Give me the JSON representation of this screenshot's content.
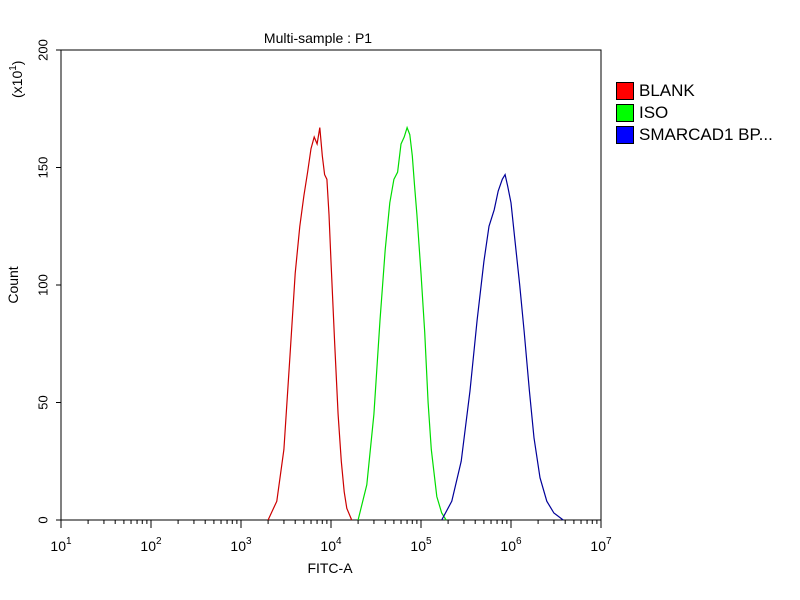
{
  "chart_data": {
    "type": "line",
    "title": "Multi-sample : P1",
    "xlabel": "FITC-A",
    "ylabel": "Count",
    "yscale_label": "(x10",
    "yscale_exp": "1",
    "yscale_close": ")",
    "xscale": "log",
    "xlim": [
      10,
      10000000
    ],
    "ylim": [
      0,
      200
    ],
    "yticks": [
      "0",
      "50",
      "100",
      "150",
      "200"
    ],
    "xticks": [
      {
        "base": "10",
        "exp": "1"
      },
      {
        "base": "10",
        "exp": "2"
      },
      {
        "base": "10",
        "exp": "3"
      },
      {
        "base": "10",
        "exp": "4"
      },
      {
        "base": "10",
        "exp": "5"
      },
      {
        "base": "10",
        "exp": "6"
      },
      {
        "base": "10",
        "exp": "7"
      }
    ],
    "legend_position": "right",
    "series": [
      {
        "name": "BLANK",
        "color": "#cc0000",
        "points": [
          [
            2000,
            0
          ],
          [
            2500,
            8
          ],
          [
            3000,
            30
          ],
          [
            3500,
            70
          ],
          [
            4000,
            105
          ],
          [
            4500,
            125
          ],
          [
            5000,
            138
          ],
          [
            5500,
            148
          ],
          [
            6000,
            158
          ],
          [
            6500,
            163
          ],
          [
            7000,
            160
          ],
          [
            7500,
            167
          ],
          [
            8000,
            155
          ],
          [
            8500,
            147
          ],
          [
            9000,
            145
          ],
          [
            9500,
            130
          ],
          [
            10000,
            110
          ],
          [
            11000,
            75
          ],
          [
            12000,
            45
          ],
          [
            13000,
            25
          ],
          [
            14000,
            12
          ],
          [
            15000,
            5
          ],
          [
            17000,
            0
          ]
        ]
      },
      {
        "name": "ISO",
        "color": "#00dd00",
        "points": [
          [
            20000,
            0
          ],
          [
            25000,
            15
          ],
          [
            30000,
            45
          ],
          [
            35000,
            85
          ],
          [
            40000,
            115
          ],
          [
            45000,
            135
          ],
          [
            50000,
            145
          ],
          [
            55000,
            148
          ],
          [
            60000,
            160
          ],
          [
            65000,
            163
          ],
          [
            70000,
            167
          ],
          [
            75000,
            164
          ],
          [
            80000,
            155
          ],
          [
            85000,
            142
          ],
          [
            90000,
            130
          ],
          [
            100000,
            105
          ],
          [
            110000,
            80
          ],
          [
            120000,
            50
          ],
          [
            130000,
            30
          ],
          [
            150000,
            10
          ],
          [
            170000,
            3
          ],
          [
            190000,
            0
          ]
        ]
      },
      {
        "name": "SMARCAD1 BP...",
        "color": "#000099",
        "points": [
          [
            170000,
            0
          ],
          [
            220000,
            8
          ],
          [
            280000,
            25
          ],
          [
            350000,
            55
          ],
          [
            420000,
            85
          ],
          [
            500000,
            110
          ],
          [
            570000,
            125
          ],
          [
            650000,
            132
          ],
          [
            720000,
            140
          ],
          [
            800000,
            145
          ],
          [
            860000,
            147
          ],
          [
            920000,
            142
          ],
          [
            1000000,
            135
          ],
          [
            1100000,
            120
          ],
          [
            1250000,
            100
          ],
          [
            1400000,
            80
          ],
          [
            1600000,
            55
          ],
          [
            1800000,
            35
          ],
          [
            2100000,
            18
          ],
          [
            2500000,
            8
          ],
          [
            3000000,
            3
          ],
          [
            3800000,
            0
          ]
        ]
      }
    ]
  }
}
